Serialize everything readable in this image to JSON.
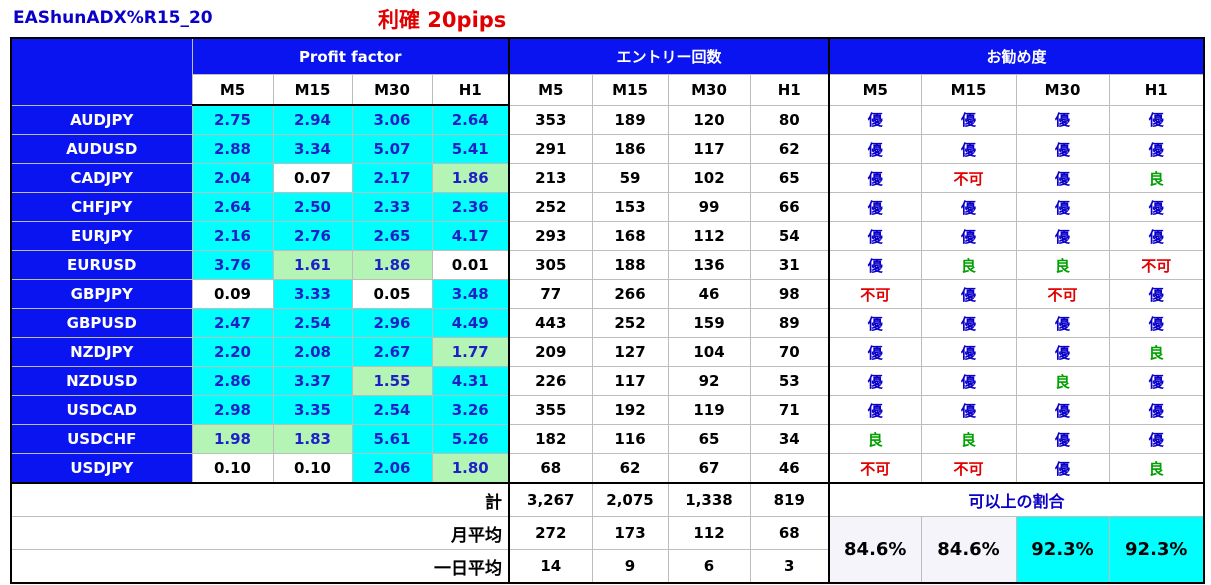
{
  "header": {
    "title": "EAShunADX%R15_20",
    "subtitle": "利確 20pips"
  },
  "groups": {
    "pf": "Profit factor",
    "entries": "エントリー回数",
    "rec": "お勧め度"
  },
  "timeframes": [
    "M5",
    "M15",
    "M30",
    "H1"
  ],
  "rows": [
    {
      "pair": "AUDJPY",
      "pf": [
        "2.75",
        "2.94",
        "3.06",
        "2.64"
      ],
      "pfc": [
        "c",
        "c",
        "c",
        "c"
      ],
      "ent": [
        "353",
        "189",
        "120",
        "80"
      ],
      "rec": [
        "優",
        "優",
        "優",
        "優"
      ]
    },
    {
      "pair": "AUDUSD",
      "pf": [
        "2.88",
        "3.34",
        "5.07",
        "5.41"
      ],
      "pfc": [
        "c",
        "c",
        "c",
        "c"
      ],
      "ent": [
        "291",
        "186",
        "117",
        "62"
      ],
      "rec": [
        "優",
        "優",
        "優",
        "優"
      ]
    },
    {
      "pair": "CADJPY",
      "pf": [
        "2.04",
        "0.07",
        "2.17",
        "1.86"
      ],
      "pfc": [
        "c",
        "w",
        "c",
        "g"
      ],
      "ent": [
        "213",
        "59",
        "102",
        "65"
      ],
      "rec": [
        "優",
        "不可",
        "優",
        "良"
      ]
    },
    {
      "pair": "CHFJPY",
      "pf": [
        "2.64",
        "2.50",
        "2.33",
        "2.36"
      ],
      "pfc": [
        "c",
        "c",
        "c",
        "c"
      ],
      "ent": [
        "252",
        "153",
        "99",
        "66"
      ],
      "rec": [
        "優",
        "優",
        "優",
        "優"
      ]
    },
    {
      "pair": "EURJPY",
      "pf": [
        "2.16",
        "2.76",
        "2.65",
        "4.17"
      ],
      "pfc": [
        "c",
        "c",
        "c",
        "c"
      ],
      "ent": [
        "293",
        "168",
        "112",
        "54"
      ],
      "rec": [
        "優",
        "優",
        "優",
        "優"
      ]
    },
    {
      "pair": "EURUSD",
      "pf": [
        "3.76",
        "1.61",
        "1.86",
        "0.01"
      ],
      "pfc": [
        "c",
        "g",
        "g",
        "w"
      ],
      "ent": [
        "305",
        "188",
        "136",
        "31"
      ],
      "rec": [
        "優",
        "良",
        "良",
        "不可"
      ]
    },
    {
      "pair": "GBPJPY",
      "pf": [
        "0.09",
        "3.33",
        "0.05",
        "3.48"
      ],
      "pfc": [
        "w",
        "c",
        "w",
        "c"
      ],
      "ent": [
        "77",
        "266",
        "46",
        "98"
      ],
      "rec": [
        "不可",
        "優",
        "不可",
        "優"
      ]
    },
    {
      "pair": "GBPUSD",
      "pf": [
        "2.47",
        "2.54",
        "2.96",
        "4.49"
      ],
      "pfc": [
        "c",
        "c",
        "c",
        "c"
      ],
      "ent": [
        "443",
        "252",
        "159",
        "89"
      ],
      "rec": [
        "優",
        "優",
        "優",
        "優"
      ]
    },
    {
      "pair": "NZDJPY",
      "pf": [
        "2.20",
        "2.08",
        "2.67",
        "1.77"
      ],
      "pfc": [
        "c",
        "c",
        "c",
        "g"
      ],
      "ent": [
        "209",
        "127",
        "104",
        "70"
      ],
      "rec": [
        "優",
        "優",
        "優",
        "良"
      ]
    },
    {
      "pair": "NZDUSD",
      "pf": [
        "2.86",
        "3.37",
        "1.55",
        "4.31"
      ],
      "pfc": [
        "c",
        "c",
        "g",
        "c"
      ],
      "ent": [
        "226",
        "117",
        "92",
        "53"
      ],
      "rec": [
        "優",
        "優",
        "良",
        "優"
      ]
    },
    {
      "pair": "USDCAD",
      "pf": [
        "2.98",
        "3.35",
        "2.54",
        "3.26"
      ],
      "pfc": [
        "c",
        "c",
        "c",
        "c"
      ],
      "ent": [
        "355",
        "192",
        "119",
        "71"
      ],
      "rec": [
        "優",
        "優",
        "優",
        "優"
      ]
    },
    {
      "pair": "USDCHF",
      "pf": [
        "1.98",
        "1.83",
        "5.61",
        "5.26"
      ],
      "pfc": [
        "g",
        "g",
        "c",
        "c"
      ],
      "ent": [
        "182",
        "116",
        "65",
        "34"
      ],
      "rec": [
        "良",
        "良",
        "優",
        "優"
      ]
    },
    {
      "pair": "USDJPY",
      "pf": [
        "0.10",
        "0.10",
        "2.06",
        "1.80"
      ],
      "pfc": [
        "w",
        "w",
        "c",
        "g"
      ],
      "ent": [
        "68",
        "62",
        "67",
        "46"
      ],
      "rec": [
        "不可",
        "不可",
        "優",
        "良"
      ]
    }
  ],
  "totals": {
    "total_label": "計",
    "total": [
      "3,267",
      "2,075",
      "1,338",
      "819"
    ],
    "month_label": "月平均",
    "month": [
      "272",
      "173",
      "112",
      "68"
    ],
    "day_label": "一日平均",
    "day": [
      "14",
      "9",
      "6",
      "3"
    ],
    "ratio_label": "可以上の割合",
    "ratio": [
      "84.6%",
      "84.6%",
      "92.3%",
      "92.3%"
    ],
    "ratio_highlight": [
      false,
      false,
      true,
      true
    ]
  },
  "colors": {
    "header_blue": "#0a14f0",
    "cyan": "#00ffff",
    "light_green": "#b4f4b4",
    "rating_excellent": "#0a00c8",
    "rating_good": "#00a000",
    "rating_poor": "#e00000"
  }
}
